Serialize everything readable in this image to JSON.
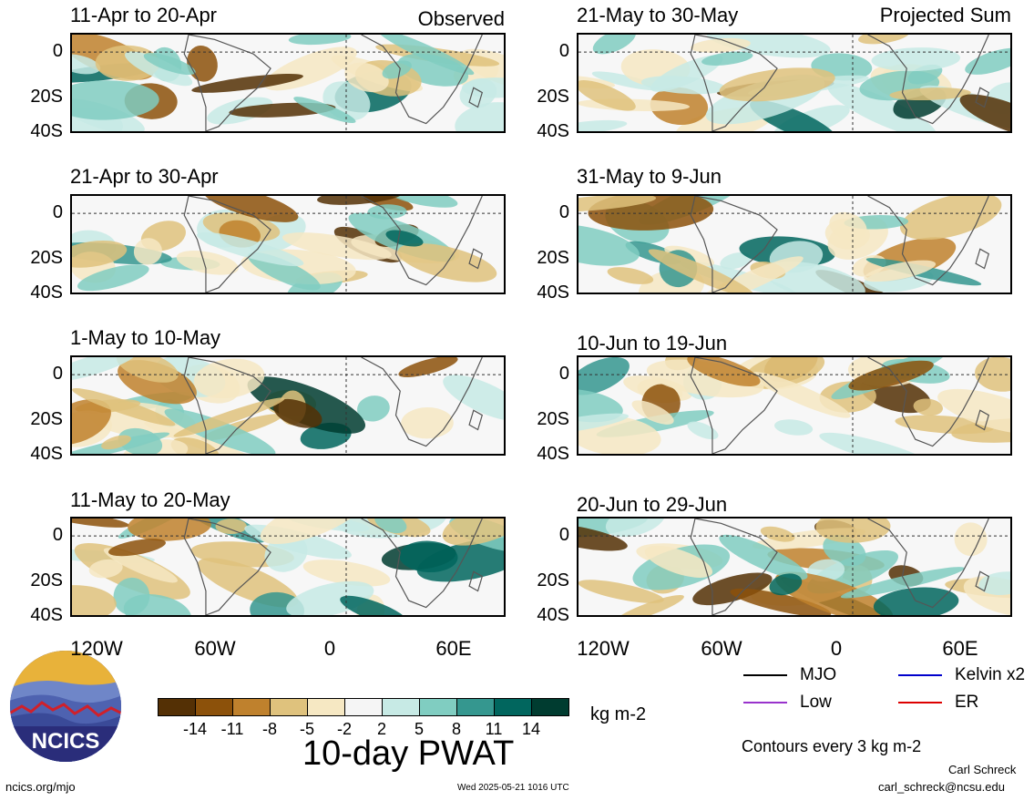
{
  "left_header": "Observed",
  "right_header": "Projected Sum",
  "panels_left": [
    {
      "title": "11-Apr to 20-Apr"
    },
    {
      "title": "21-Apr to 30-Apr"
    },
    {
      "title": "1-May to 10-May"
    },
    {
      "title": "11-May to 20-May"
    }
  ],
  "panels_right": [
    {
      "title": "21-May to 30-May"
    },
    {
      "title": "31-May to 9-Jun"
    },
    {
      "title": "10-Jun to 19-Jun"
    },
    {
      "title": "20-Jun to 29-Jun"
    }
  ],
  "chart_data": {
    "type": "heatmap",
    "title": "10-day PWAT",
    "y_ticks": [
      "0",
      "20S",
      "40S"
    ],
    "x_ticks": [
      "120W",
      "60W",
      "0",
      "60E"
    ],
    "colorbar": {
      "unit": "kg m-2",
      "labels": [
        "-14",
        "-11",
        "-8",
        "-5",
        "-2",
        "2",
        "5",
        "8",
        "11",
        "14"
      ],
      "colors": [
        "#543005",
        "#8c510a",
        "#bf812d",
        "#dfc27d",
        "#f6e8c3",
        "#f5f5f5",
        "#c7eae5",
        "#80cdc1",
        "#35978f",
        "#01665e",
        "#003c30"
      ]
    },
    "contour_note": "Contours every 3 kg m-2"
  },
  "legend": [
    {
      "label": "MJO",
      "color": "#000000"
    },
    {
      "label": "Kelvin x2",
      "color": "#0000cc"
    },
    {
      "label": "Low",
      "color": "#9933cc"
    },
    {
      "label": "ER",
      "color": "#dd0000"
    }
  ],
  "logo_text": "NCICS",
  "footer": {
    "site": "ncics.org/mjo",
    "timestamp": "Wed 2025-05-21 1016 UTC",
    "author": "Carl Schreck",
    "email": "carl_schreck@ncsu.edu"
  }
}
